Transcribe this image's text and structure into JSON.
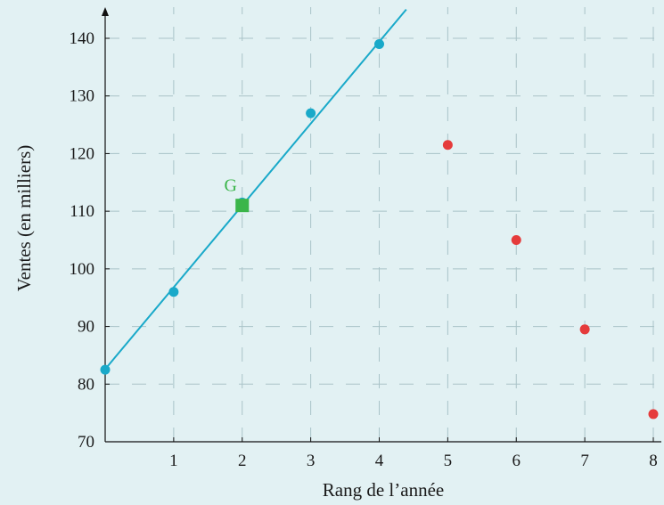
{
  "chart_data": {
    "type": "scatter",
    "xlabel": "Rang de l’année",
    "ylabel": "Ventes (en milliers)",
    "xlim": [
      0,
      8
    ],
    "ylim": [
      70,
      145
    ],
    "x_ticks": [
      1,
      2,
      3,
      4,
      5,
      6,
      7,
      8
    ],
    "y_ticks": [
      70,
      80,
      90,
      100,
      110,
      120,
      130,
      140
    ],
    "grid": true,
    "series": [
      {
        "color": "#19a9c9",
        "points": [
          [
            0,
            82.5
          ],
          [
            1,
            96
          ],
          [
            2,
            111.5
          ],
          [
            3,
            127
          ],
          [
            4,
            139
          ]
        ]
      },
      {
        "color": "#e53b3b",
        "points": [
          [
            5,
            121.5
          ],
          [
            6,
            105
          ],
          [
            7,
            89.5
          ],
          [
            8,
            74.8
          ]
        ]
      }
    ],
    "regression_line": {
      "color": "#19a9c9",
      "slope": 14.2,
      "intercept": 82.6
    },
    "mean_point": {
      "label": "G",
      "x": 2,
      "y": 111,
      "color": "#3bb54a"
    }
  }
}
